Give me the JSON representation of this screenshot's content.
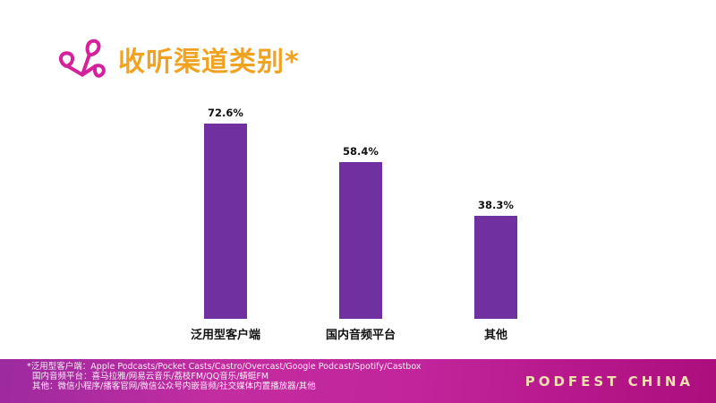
{
  "slide": {
    "title": "收听渠道类别*",
    "title_color": "#F0A321",
    "logo_color": "#D4219D"
  },
  "chart_data": {
    "type": "bar",
    "title": "收听渠道类别*",
    "categories": [
      "泛用型客户端",
      "国内音频平台",
      "其他"
    ],
    "values": [
      72.6,
      58.4,
      38.3
    ],
    "value_labels": [
      "72.6%",
      "58.4%",
      "38.3%"
    ],
    "bar_color": "#7030A0",
    "xlabel": "",
    "ylabel": "",
    "ylim": [
      0,
      80
    ],
    "grid": false,
    "legend": "none",
    "axis_lines": false
  },
  "footer": {
    "notes": [
      "*泛用型客户端：Apple Podcasts/Pocket Casts/Castro/Overcast/Google Podcast/Spotify/Castbox",
      "国内音频平台：喜马拉雅/网易云音乐/荔枝FM/QQ音乐/蜻蜓FM",
      "其他：微信小程序/播客官网/微信公众号内嵌音频/社交媒体内置播放器/其他"
    ],
    "brand": "PODFEST CHINA",
    "background_colors": [
      "#9D2AA0",
      "#C22DA0",
      "#AC0E7E"
    ],
    "brand_color": "#F2DFAF"
  }
}
